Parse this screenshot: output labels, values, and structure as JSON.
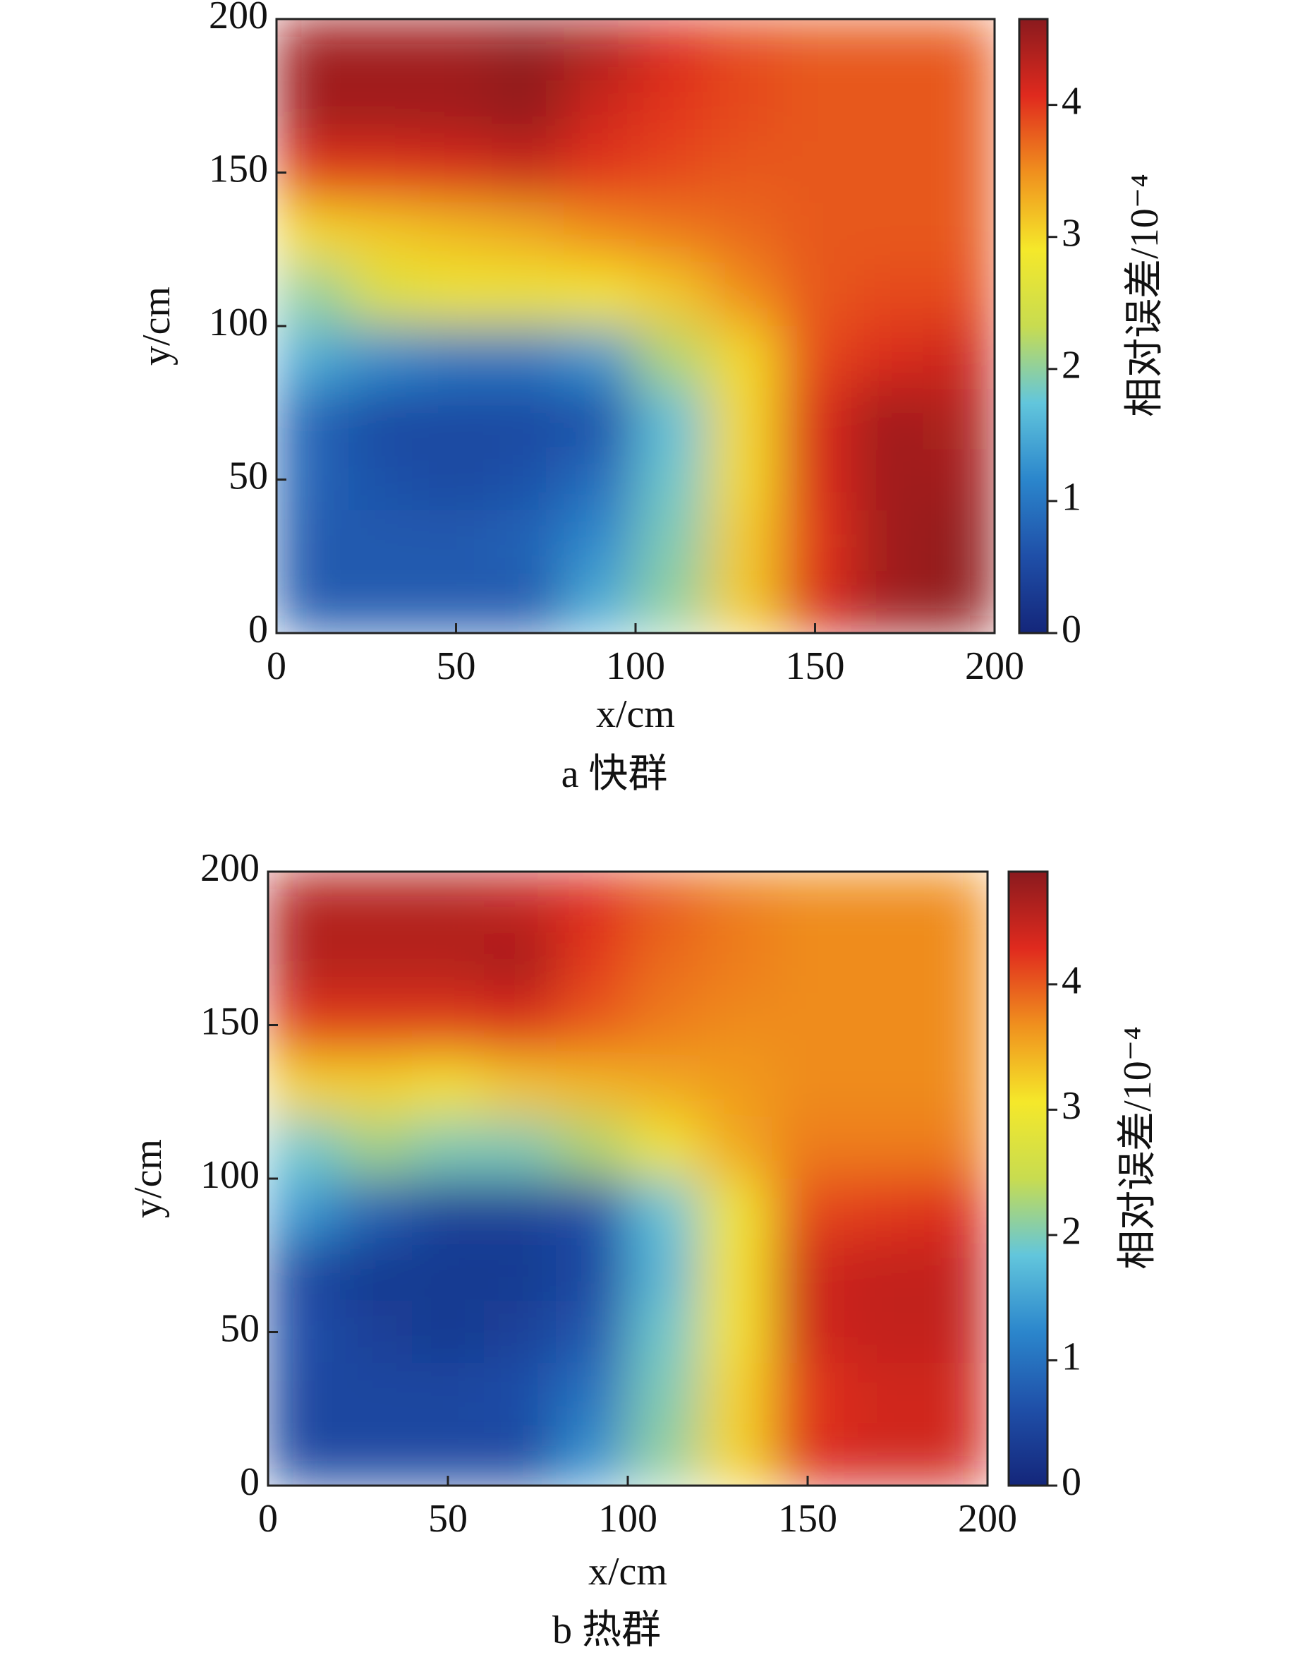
{
  "chart_data": [
    {
      "type": "heatmap",
      "caption": "a 快群",
      "xlabel": "x/cm",
      "ylabel": "y/cm",
      "colorbar_label": "相对误差/10⁻⁴",
      "xlim": [
        0,
        200
      ],
      "ylim": [
        0,
        200
      ],
      "xticks": [
        0,
        50,
        100,
        150,
        200
      ],
      "yticks": [
        0,
        50,
        100,
        150,
        200
      ],
      "clim": [
        0,
        4.65
      ],
      "cticks": [
        0,
        1,
        2,
        3,
        4
      ],
      "colormap": [
        "#14267a",
        "#1f4fa8",
        "#2b86cc",
        "#62c6dc",
        "#c8dc50",
        "#f5e82a",
        "#f0901e",
        "#e02a1e",
        "#8a1a1e"
      ],
      "x": [
        10,
        30,
        50,
        70,
        90,
        110,
        130,
        150,
        170,
        190
      ],
      "y": [
        190,
        170,
        150,
        130,
        110,
        90,
        70,
        50,
        30,
        10
      ],
      "values": [
        [
          4.5,
          4.5,
          4.5,
          4.6,
          4.4,
          4.1,
          3.9,
          3.8,
          3.8,
          3.8
        ],
        [
          4.5,
          4.5,
          4.5,
          4.6,
          4.2,
          4.0,
          3.9,
          3.8,
          3.8,
          3.8
        ],
        [
          4.0,
          4.0,
          4.1,
          4.2,
          4.0,
          3.9,
          3.8,
          3.8,
          3.8,
          3.8
        ],
        [
          3.0,
          3.1,
          3.2,
          3.3,
          3.5,
          3.6,
          3.7,
          3.8,
          3.8,
          3.8
        ],
        [
          2.0,
          2.6,
          2.8,
          2.8,
          2.9,
          3.1,
          3.5,
          3.8,
          3.9,
          3.9
        ],
        [
          1.5,
          1.2,
          1.0,
          1.0,
          1.3,
          2.2,
          3.0,
          3.9,
          4.1,
          4.2
        ],
        [
          0.8,
          0.5,
          0.5,
          0.5,
          0.6,
          1.7,
          3.0,
          4.1,
          4.5,
          4.4
        ],
        [
          0.8,
          0.6,
          0.5,
          0.6,
          0.9,
          1.8,
          3.0,
          4.1,
          4.5,
          4.5
        ],
        [
          0.7,
          0.7,
          0.7,
          0.8,
          1.2,
          1.9,
          3.1,
          4.0,
          4.5,
          4.6
        ],
        [
          0.7,
          0.7,
          0.7,
          0.7,
          1.5,
          2.0,
          3.1,
          4.1,
          4.5,
          4.6
        ]
      ]
    },
    {
      "type": "heatmap",
      "caption": "b 热群",
      "xlabel": "x/cm",
      "ylabel": "y/cm",
      "colorbar_label": "相对误差/10⁻⁴",
      "xlim": [
        0,
        200
      ],
      "ylim": [
        0,
        200
      ],
      "xticks": [
        0,
        50,
        100,
        150,
        200
      ],
      "yticks": [
        0,
        50,
        100,
        150,
        200
      ],
      "clim": [
        0,
        4.9
      ],
      "cticks": [
        0,
        1,
        2,
        3,
        4
      ],
      "colormap": [
        "#14267a",
        "#1f4fa8",
        "#2b86cc",
        "#62c6dc",
        "#c8dc50",
        "#f5e82a",
        "#f0901e",
        "#e02a1e",
        "#8a1a1e"
      ],
      "x": [
        10,
        30,
        50,
        70,
        90,
        110,
        130,
        150,
        170,
        190
      ],
      "y": [
        190,
        170,
        150,
        130,
        110,
        90,
        70,
        50,
        30,
        10
      ],
      "values": [
        [
          4.6,
          4.6,
          4.6,
          4.5,
          4.3,
          4.0,
          3.8,
          3.7,
          3.7,
          3.7
        ],
        [
          4.6,
          4.6,
          4.6,
          4.7,
          4.2,
          3.9,
          3.8,
          3.7,
          3.7,
          3.7
        ],
        [
          4.2,
          4.2,
          4.2,
          4.3,
          4.0,
          3.8,
          3.7,
          3.7,
          3.7,
          3.7
        ],
        [
          3.2,
          3.2,
          3.1,
          3.3,
          3.4,
          3.5,
          3.6,
          3.7,
          3.7,
          3.7
        ],
        [
          1.9,
          2.2,
          2.0,
          2.0,
          2.3,
          3.0,
          3.5,
          3.8,
          3.8,
          3.8
        ],
        [
          1.4,
          0.8,
          0.4,
          0.4,
          0.6,
          1.8,
          3.0,
          4.1,
          4.2,
          4.3
        ],
        [
          0.5,
          0.3,
          0.3,
          0.3,
          0.5,
          1.7,
          3.1,
          4.4,
          4.5,
          4.5
        ],
        [
          0.6,
          0.4,
          0.3,
          0.4,
          0.7,
          1.9,
          3.1,
          4.4,
          4.5,
          4.5
        ],
        [
          0.5,
          0.5,
          0.5,
          0.6,
          1.0,
          2.0,
          3.2,
          4.2,
          4.4,
          4.4
        ],
        [
          0.5,
          0.5,
          0.5,
          0.5,
          1.3,
          2.1,
          3.2,
          4.3,
          4.4,
          4.4
        ]
      ]
    }
  ]
}
